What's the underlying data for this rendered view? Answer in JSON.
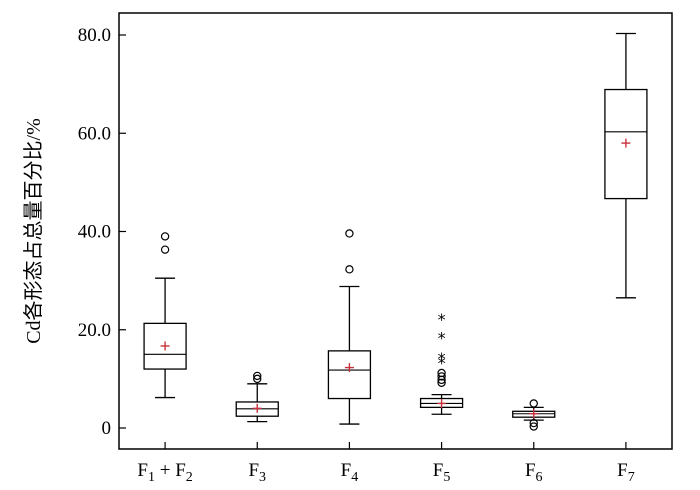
{
  "chart_data": {
    "type": "boxplot",
    "title": "",
    "xlabel": "",
    "ylabel": "Cd各形态占总量百分比/%",
    "ylim": [
      -4,
      87
    ],
    "yticks": [
      "0",
      "20.0",
      "40.0",
      "60.0",
      "80.0"
    ],
    "ytick_values": [
      0,
      20,
      40,
      60,
      80
    ],
    "grid": false,
    "legend": "none",
    "colors": {
      "box": "#000000",
      "mean_marker": "#c8323c"
    },
    "categories": [
      {
        "sub": "F1 + F2",
        "base1": "F",
        "sub1": "1",
        "mid": " + ",
        "base2": "F",
        "sub2": "2"
      },
      {
        "sub": "F3",
        "base1": "F",
        "sub1": "3",
        "mid": "",
        "base2": "",
        "sub2": ""
      },
      {
        "sub": "F4",
        "base1": "F",
        "sub1": "4",
        "mid": "",
        "base2": "",
        "sub2": ""
      },
      {
        "sub": "F5",
        "base1": "F",
        "sub1": "5",
        "mid": "",
        "base2": "",
        "sub2": ""
      },
      {
        "sub": "F6",
        "base1": "F",
        "sub1": "6",
        "mid": "",
        "base2": "",
        "sub2": ""
      },
      {
        "sub": "F7",
        "base1": "F",
        "sub1": "7",
        "mid": "",
        "base2": "",
        "sub2": ""
      }
    ],
    "boxes": [
      {
        "q1": 12.0,
        "median": 15.0,
        "q3": 21.3,
        "whisker_low": 6.2,
        "whisker_high": 30.5,
        "mean": 16.7,
        "outliers_circle": [
          36.3,
          39.0
        ],
        "outliers_star": []
      },
      {
        "q1": 2.4,
        "median": 3.9,
        "q3": 5.3,
        "whisker_low": 1.3,
        "whisker_high": 9.0,
        "mean": 4.0,
        "outliers_circle": [
          10.0,
          10.6
        ],
        "outliers_star": []
      },
      {
        "q1": 6.0,
        "median": 11.8,
        "q3": 15.7,
        "whisker_low": 0.8,
        "whisker_high": 28.8,
        "mean": 12.3,
        "outliers_circle": [
          32.3,
          39.6
        ],
        "outliers_star": []
      },
      {
        "q1": 4.2,
        "median": 5.0,
        "q3": 6.0,
        "whisker_low": 2.8,
        "whisker_high": 6.8,
        "mean": 5.0,
        "outliers_circle": [
          9.2,
          9.8,
          10.5,
          11.2
        ],
        "outliers_star": [
          13.3,
          14.3,
          18.4,
          22.2
        ]
      },
      {
        "q1": 2.2,
        "median": 2.9,
        "q3": 3.4,
        "whisker_low": 1.6,
        "whisker_high": 4.2,
        "mean": 2.9,
        "outliers_circle": [
          0.3,
          1.0,
          5.0
        ],
        "outliers_star": []
      },
      {
        "q1": 46.7,
        "median": 60.3,
        "q3": 68.9,
        "whisker_low": 26.5,
        "whisker_high": 80.3,
        "mean": 58.0,
        "outliers_circle": [],
        "outliers_star": []
      }
    ]
  }
}
